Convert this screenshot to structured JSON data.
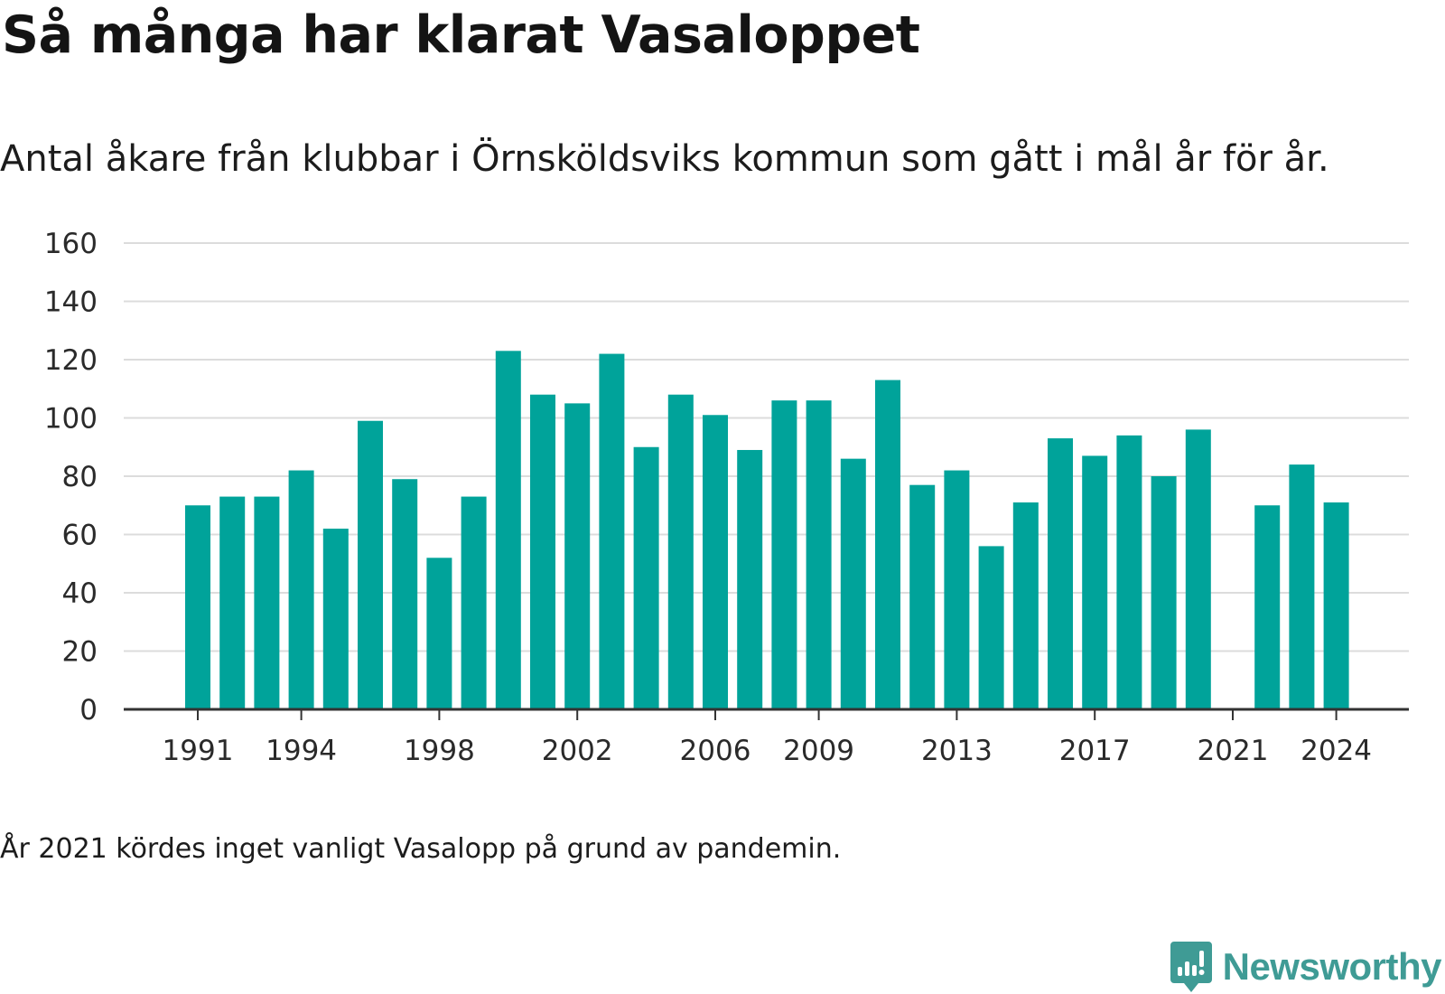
{
  "header": {
    "title": "Så många har klarat Vasaloppet",
    "subtitle": "Antal åkare från klubbar i Örnsköldsviks kommun som gått i mål år för år."
  },
  "footnote": "År 2021 kördes inget vanligt Vasalopp på grund av pandemin.",
  "brand": {
    "name": "Newsworthy",
    "icon": "newsworthy-logo-icon",
    "color": "#3f9b95"
  },
  "colors": {
    "bar": "#00a39a",
    "grid": "#dcdcdc",
    "axis": "#333333"
  },
  "chart_data": {
    "type": "bar",
    "title": "Så många har klarat Vasaloppet",
    "subtitle": "Antal åkare från klubbar i Örnsköldsviks kommun som gått i mål år för år.",
    "xlabel": "",
    "ylabel": "",
    "categories": [
      "1991",
      "1992",
      "1993",
      "1994",
      "1995",
      "1996",
      "1997",
      "1998",
      "1999",
      "2000",
      "2001",
      "2002",
      "2003",
      "2004",
      "2005",
      "2006",
      "2007",
      "2008",
      "2009",
      "2010",
      "2011",
      "2012",
      "2013",
      "2014",
      "2015",
      "2016",
      "2017",
      "2018",
      "2019",
      "2020",
      "2021",
      "2022",
      "2023",
      "2024"
    ],
    "values": [
      70,
      73,
      73,
      82,
      62,
      99,
      79,
      52,
      73,
      123,
      108,
      105,
      122,
      90,
      108,
      101,
      89,
      106,
      106,
      86,
      113,
      77,
      82,
      56,
      71,
      93,
      87,
      94,
      80,
      96,
      null,
      70,
      84,
      71
    ],
    "ylim": [
      0,
      160
    ],
    "yticks": [
      0,
      20,
      40,
      60,
      80,
      100,
      120,
      140,
      160
    ],
    "xticks": [
      "1991",
      "1994",
      "1998",
      "2002",
      "2006",
      "2009",
      "2013",
      "2017",
      "2021",
      "2024"
    ],
    "grid": true,
    "legend": "none"
  }
}
